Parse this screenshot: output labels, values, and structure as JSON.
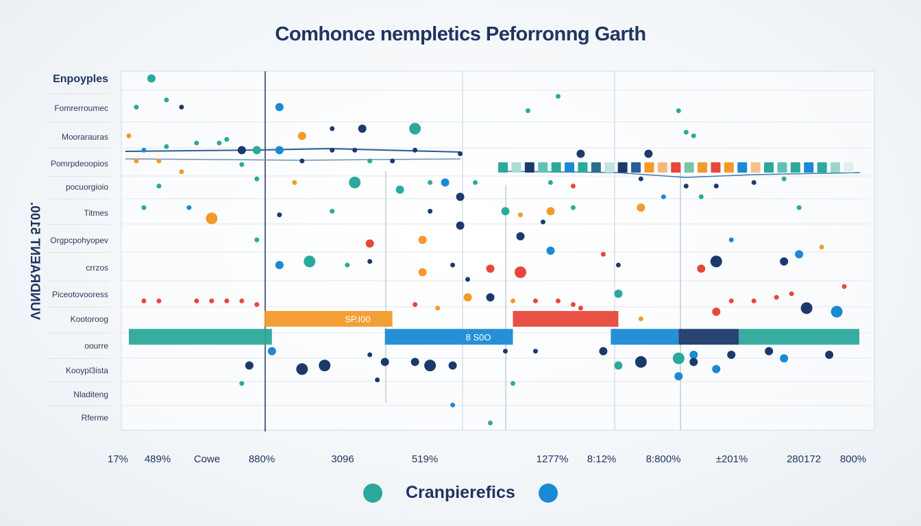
{
  "chart_data": {
    "type": "scatter",
    "title": "Comhonce nempletics Peforronng Garth",
    "ylabel": "VUNDRAENT 5100.",
    "row_header": "Enpoyples",
    "rows": [
      "Fomrerroumec",
      "Moorarauras",
      "Pomrpdeoopios",
      "pocuorgioio",
      "Titmes",
      "Orgpcpohyopev",
      "crrzos",
      "Piceotovooress",
      "Kootoroog",
      "oourre",
      "Kooypl3ista",
      "Nladiteng",
      "Rferme"
    ],
    "x_ticks": [
      "17%",
      "489%",
      "Cowe",
      "880%",
      "3096",
      "519%",
      "1277%",
      "8:12%",
      "8:800%",
      "±201%",
      "280172",
      "800%"
    ],
    "xlim": [
      0,
      100
    ],
    "ylim": [
      0,
      100
    ],
    "grid": true,
    "colors": {
      "teal": "#2ba99b",
      "navy": "#1b3a6b",
      "orange": "#f39a2b",
      "red": "#e8473c",
      "blue": "#1a8ad4"
    },
    "points": [
      [
        4,
        98,
        "teal",
        1
      ],
      [
        2,
        90,
        "teal",
        0
      ],
      [
        8,
        90,
        "navy",
        0
      ],
      [
        21,
        90,
        "blue",
        1
      ],
      [
        6,
        92,
        "teal",
        0
      ],
      [
        1,
        82,
        "orange",
        0
      ],
      [
        3,
        78,
        "blue",
        0
      ],
      [
        6,
        79,
        "teal",
        0
      ],
      [
        10,
        80,
        "teal",
        0
      ],
      [
        13,
        80,
        "teal",
        0
      ],
      [
        14,
        81,
        "teal",
        0
      ],
      [
        24,
        82,
        "orange",
        1
      ],
      [
        28,
        84,
        "navy",
        0
      ],
      [
        32,
        84,
        "navy",
        1
      ],
      [
        39,
        84,
        "teal",
        2
      ],
      [
        16,
        78,
        "navy",
        1
      ],
      [
        18,
        78,
        "teal",
        1
      ],
      [
        21,
        78,
        "blue",
        1
      ],
      [
        28,
        78,
        "navy",
        0
      ],
      [
        31,
        78,
        "navy",
        0
      ],
      [
        39,
        78,
        "navy",
        0
      ],
      [
        2,
        75,
        "orange",
        0
      ],
      [
        5,
        75,
        "orange",
        0
      ],
      [
        8,
        72,
        "orange",
        0
      ],
      [
        16,
        74,
        "teal",
        0
      ],
      [
        24,
        75,
        "navy",
        0
      ],
      [
        33,
        75,
        "teal",
        0
      ],
      [
        36,
        75,
        "navy",
        0
      ],
      [
        45,
        77,
        "navy",
        0
      ],
      [
        18,
        70,
        "teal",
        0
      ],
      [
        23,
        69,
        "orange",
        0
      ],
      [
        31,
        69,
        "teal",
        2
      ],
      [
        37,
        67,
        "teal",
        1
      ],
      [
        41,
        69,
        "teal",
        0
      ],
      [
        43,
        69,
        "blue",
        1
      ],
      [
        47,
        69,
        "teal",
        0
      ],
      [
        5,
        68,
        "teal",
        0
      ],
      [
        3,
        62,
        "teal",
        0
      ],
      [
        9,
        62,
        "blue",
        0
      ],
      [
        12,
        59,
        "orange",
        2
      ],
      [
        21,
        60,
        "navy",
        0
      ],
      [
        28,
        61,
        "teal",
        0
      ],
      [
        41,
        61,
        "navy",
        0
      ],
      [
        45,
        65,
        "navy",
        1
      ],
      [
        51,
        61,
        "teal",
        1
      ],
      [
        53,
        60,
        "orange",
        0
      ],
      [
        57,
        61,
        "orange",
        1
      ],
      [
        56,
        58,
        "navy",
        0
      ],
      [
        60,
        62,
        "teal",
        0
      ],
      [
        69,
        62,
        "orange",
        1
      ],
      [
        45,
        57,
        "navy",
        1
      ],
      [
        40,
        53,
        "orange",
        1
      ],
      [
        53,
        54,
        "navy",
        1
      ],
      [
        33,
        52,
        "red",
        1
      ],
      [
        18,
        53,
        "teal",
        0
      ],
      [
        25,
        47,
        "teal",
        2
      ],
      [
        21,
        46,
        "blue",
        1
      ],
      [
        33,
        47,
        "navy",
        0
      ],
      [
        30,
        46,
        "teal",
        0
      ],
      [
        40,
        44,
        "orange",
        1
      ],
      [
        44,
        46,
        "navy",
        0
      ],
      [
        49,
        45,
        "red",
        1
      ],
      [
        53,
        44,
        "red",
        2
      ],
      [
        46,
        42,
        "navy",
        0
      ],
      [
        57,
        50,
        "blue",
        1
      ],
      [
        64,
        49,
        "red",
        0
      ],
      [
        66,
        46,
        "navy",
        0
      ],
      [
        79,
        47,
        "navy",
        2
      ],
      [
        77,
        45,
        "red",
        1
      ],
      [
        88,
        47,
        "navy",
        1
      ],
      [
        90,
        49,
        "blue",
        1
      ],
      [
        81,
        53,
        "blue",
        0
      ],
      [
        93,
        51,
        "orange",
        0
      ],
      [
        91,
        34,
        "navy",
        2
      ],
      [
        95,
        33,
        "blue",
        2
      ],
      [
        66,
        38,
        "teal",
        1
      ],
      [
        49,
        37,
        "navy",
        1
      ],
      [
        46,
        37,
        "orange",
        1
      ],
      [
        79,
        33,
        "red",
        1
      ],
      [
        69,
        31,
        "orange",
        0
      ],
      [
        3,
        36,
        "red",
        0
      ],
      [
        5,
        36,
        "red",
        0
      ],
      [
        10,
        36,
        "red",
        0
      ],
      [
        12,
        36,
        "red",
        0
      ],
      [
        14,
        36,
        "red",
        0
      ],
      [
        16,
        36,
        "red",
        0
      ],
      [
        18,
        35,
        "red",
        0
      ],
      [
        39,
        35,
        "red",
        0
      ],
      [
        42,
        34,
        "orange",
        0
      ],
      [
        52,
        36,
        "orange",
        0
      ],
      [
        55,
        36,
        "red",
        0
      ],
      [
        58,
        36,
        "red",
        0
      ],
      [
        60,
        35,
        "red",
        0
      ],
      [
        61,
        34,
        "red",
        0
      ],
      [
        81,
        36,
        "red",
        0
      ],
      [
        84,
        36,
        "red",
        0
      ],
      [
        87,
        37,
        "red",
        0
      ],
      [
        89,
        38,
        "red",
        0
      ],
      [
        96,
        40,
        "red",
        0
      ],
      [
        17,
        18,
        "navy",
        1
      ],
      [
        24,
        17,
        "navy",
        2
      ],
      [
        27,
        18,
        "navy",
        2
      ],
      [
        35,
        19,
        "navy",
        1
      ],
      [
        39,
        19,
        "navy",
        1
      ],
      [
        41,
        18,
        "navy",
        2
      ],
      [
        44,
        18,
        "navy",
        1
      ],
      [
        33,
        21,
        "navy",
        0
      ],
      [
        20,
        22,
        "blue",
        1
      ],
      [
        51,
        22,
        "navy",
        0
      ],
      [
        55,
        22,
        "navy",
        0
      ],
      [
        64,
        22,
        "navy",
        1
      ],
      [
        66,
        18,
        "teal",
        1
      ],
      [
        69,
        19,
        "navy",
        2
      ],
      [
        74,
        20,
        "teal",
        2
      ],
      [
        76,
        21,
        "blue",
        1
      ],
      [
        76,
        19,
        "navy",
        1
      ],
      [
        81,
        21,
        "navy",
        1
      ],
      [
        86,
        22,
        "navy",
        1
      ],
      [
        88,
        20,
        "blue",
        1
      ],
      [
        94,
        21,
        "navy",
        1
      ],
      [
        74,
        15,
        "blue",
        1
      ],
      [
        79,
        17,
        "blue",
        1
      ],
      [
        34,
        14,
        "navy",
        0
      ],
      [
        16,
        13,
        "teal",
        0
      ],
      [
        52,
        13,
        "teal",
        0
      ],
      [
        44,
        7,
        "blue",
        0
      ],
      [
        49,
        2,
        "teal",
        0
      ],
      [
        58,
        93,
        "teal",
        0
      ],
      [
        54,
        89,
        "teal",
        0
      ],
      [
        74,
        89,
        "teal",
        0
      ],
      [
        75,
        83,
        "teal",
        0
      ],
      [
        76,
        82,
        "teal",
        0
      ],
      [
        61,
        77,
        "navy",
        1
      ],
      [
        70,
        77,
        "navy",
        1
      ],
      [
        69,
        70,
        "navy",
        0
      ],
      [
        72,
        65,
        "blue",
        0
      ],
      [
        75,
        68,
        "navy",
        0
      ],
      [
        77,
        65,
        "teal",
        0
      ],
      [
        79,
        68,
        "navy",
        0
      ],
      [
        84,
        69,
        "navy",
        0
      ],
      [
        88,
        70,
        "teal",
        0
      ],
      [
        90,
        62,
        "teal",
        0
      ],
      [
        60,
        68,
        "red",
        0
      ],
      [
        57,
        69,
        "teal",
        0
      ]
    ],
    "bars": [
      {
        "from": 19,
        "to": 36,
        "y": 31,
        "color": "orange",
        "label": "SP.I00"
      },
      {
        "from": 35,
        "to": 52,
        "y": 26,
        "color": "blue",
        "label": "8 S0O"
      },
      {
        "from": 52,
        "to": 66,
        "y": 31,
        "color": "red",
        "label": ""
      },
      {
        "from": 1,
        "to": 20,
        "y": 26,
        "color": "teal",
        "label": ""
      },
      {
        "from": 65,
        "to": 74,
        "y": 26,
        "color": "blue",
        "label": ""
      },
      {
        "from": 74,
        "to": 82,
        "y": 26,
        "color": "navy",
        "label": ""
      },
      {
        "from": 82,
        "to": 98,
        "y": 26,
        "color": "teal",
        "label": ""
      }
    ],
    "legend": {
      "label": "Cranpierefics",
      "colors": [
        "#2ba99b",
        "#1a8ad4"
      ]
    }
  }
}
